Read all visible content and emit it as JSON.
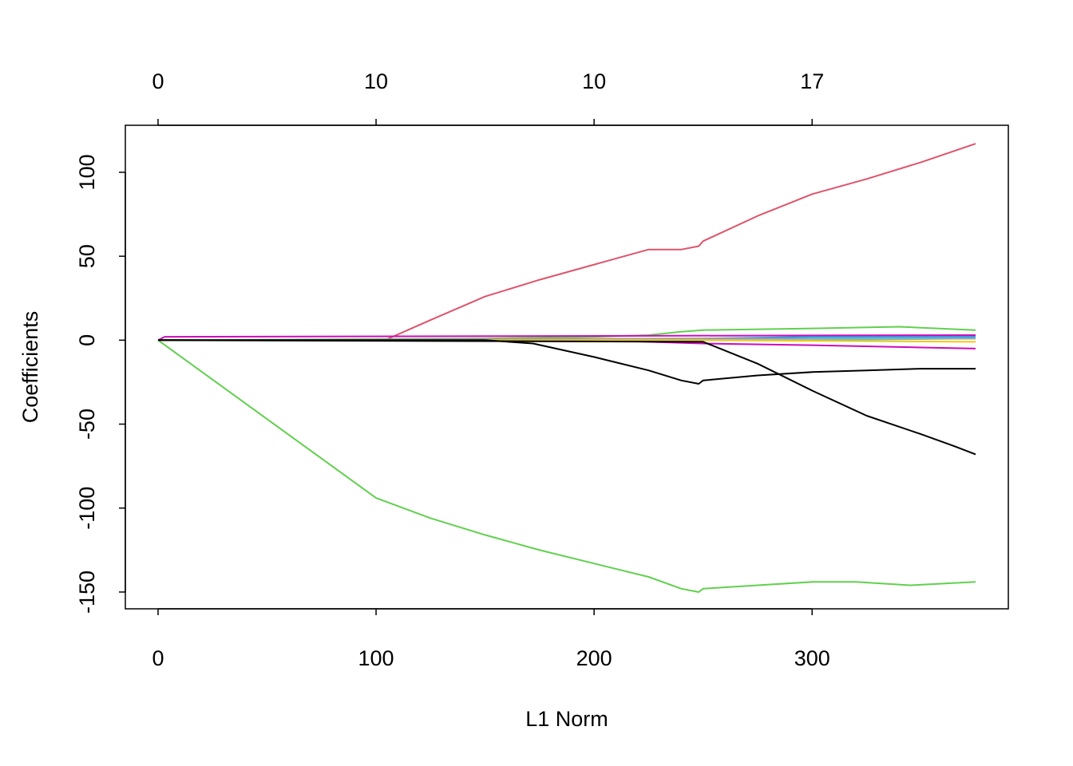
{
  "chart_data": {
    "type": "line",
    "xlabel": "L1 Norm",
    "ylabel": "Coefficients",
    "xlim": [
      -15,
      390
    ],
    "ylim": [
      -160,
      128
    ],
    "x_ticks": [
      0,
      100,
      200,
      300
    ],
    "y_ticks": [
      100,
      50,
      0,
      -50,
      -100,
      -150
    ],
    "top_axis": {
      "ticks_at": [
        0,
        100,
        200,
        300
      ],
      "labels": [
        "0",
        "10",
        "10",
        "17"
      ]
    },
    "grid": false,
    "legend": "none",
    "series": [
      {
        "color": "#DF536B",
        "points": [
          [
            0,
            0
          ],
          [
            104,
            0
          ],
          [
            125,
            12
          ],
          [
            150,
            26
          ],
          [
            175,
            36
          ],
          [
            200,
            45
          ],
          [
            225,
            54
          ],
          [
            240,
            54
          ],
          [
            248,
            56
          ],
          [
            250,
            59
          ],
          [
            275,
            74
          ],
          [
            300,
            87
          ],
          [
            325,
            96
          ],
          [
            350,
            106
          ],
          [
            375,
            117
          ]
        ]
      },
      {
        "color": "#61D04F",
        "points": [
          [
            0,
            0
          ],
          [
            100,
            -94
          ],
          [
            125,
            -106
          ],
          [
            150,
            -116
          ],
          [
            175,
            -125
          ],
          [
            200,
            -133
          ],
          [
            225,
            -141
          ],
          [
            240,
            -148
          ],
          [
            248,
            -150
          ],
          [
            250,
            -148
          ],
          [
            275,
            -146
          ],
          [
            300,
            -144
          ],
          [
            320,
            -144
          ],
          [
            345,
            -146
          ],
          [
            375,
            -144
          ]
        ]
      },
      {
        "color": "#61D04F",
        "points": [
          [
            0,
            0
          ],
          [
            150,
            1
          ],
          [
            200,
            2
          ],
          [
            225,
            3
          ],
          [
            240,
            5
          ],
          [
            250,
            6
          ],
          [
            300,
            7
          ],
          [
            340,
            8
          ],
          [
            375,
            6
          ]
        ]
      },
      {
        "color": "#CD0BBC",
        "points": [
          [
            0,
            0
          ],
          [
            3,
            2
          ],
          [
            375,
            3
          ]
        ]
      },
      {
        "color": "#CD0BBC",
        "points": [
          [
            0,
            0
          ],
          [
            200,
            0
          ],
          [
            250,
            -2
          ],
          [
            300,
            -3
          ],
          [
            375,
            -5
          ]
        ]
      },
      {
        "color": "#2297E6",
        "points": [
          [
            0,
            0
          ],
          [
            250,
            1
          ],
          [
            300,
            2
          ],
          [
            375,
            2
          ]
        ]
      },
      {
        "color": "#28E2E5",
        "points": [
          [
            0,
            0
          ],
          [
            250,
            0
          ],
          [
            300,
            0
          ],
          [
            375,
            1
          ]
        ]
      },
      {
        "color": "#9E9E9E",
        "points": [
          [
            0,
            0
          ],
          [
            250,
            1
          ],
          [
            375,
            1
          ]
        ]
      },
      {
        "color": "#F5C710",
        "points": [
          [
            0,
            0
          ],
          [
            250,
            0
          ],
          [
            375,
            -1
          ]
        ]
      },
      {
        "color": "#000000",
        "points": [
          [
            0,
            0
          ],
          [
            150,
            0
          ],
          [
            172,
            -2
          ],
          [
            200,
            -10
          ],
          [
            225,
            -18
          ],
          [
            240,
            -24
          ],
          [
            248,
            -26
          ],
          [
            250,
            -24
          ],
          [
            275,
            -21
          ],
          [
            300,
            -19
          ],
          [
            325,
            -18
          ],
          [
            350,
            -17
          ],
          [
            375,
            -17
          ]
        ]
      },
      {
        "color": "#000000",
        "points": [
          [
            0,
            0
          ],
          [
            250,
            -1
          ],
          [
            275,
            -14
          ],
          [
            300,
            -30
          ],
          [
            325,
            -45
          ],
          [
            350,
            -56
          ],
          [
            365,
            -63
          ],
          [
            375,
            -68
          ]
        ]
      }
    ]
  }
}
